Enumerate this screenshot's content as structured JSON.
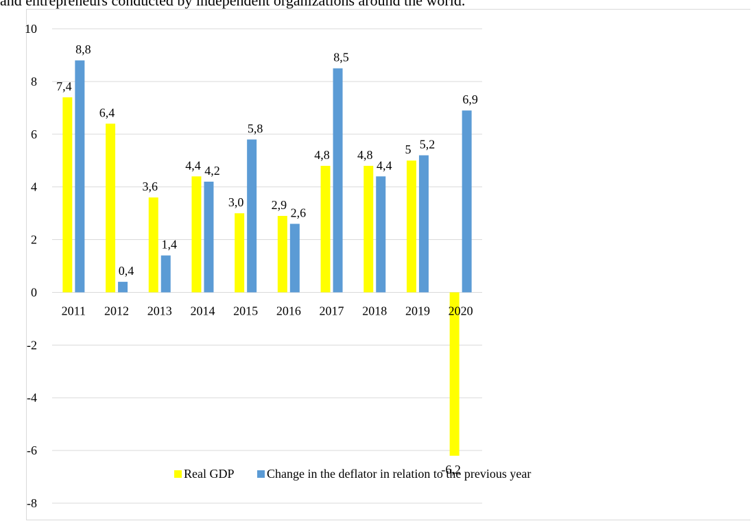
{
  "page": {
    "intro_text": "and entrepreneurs conducted by independent organizations around the world."
  },
  "chart_data": {
    "type": "bar",
    "title": "",
    "xlabel": "",
    "ylabel": "",
    "categories": [
      "2011",
      "2012",
      "2013",
      "2014",
      "2015",
      "2016",
      "2017",
      "2018",
      "2019",
      "2020"
    ],
    "series": [
      {
        "name": "Real GDP",
        "color": "#ffff00",
        "values": [
          7.4,
          6.4,
          3.6,
          4.4,
          3.0,
          2.9,
          4.8,
          4.8,
          5.0,
          -6.2
        ],
        "labels": [
          "7,4",
          "6,4",
          "3,6",
          "4,4",
          "3,0",
          "2,9",
          "4,8",
          "4,8",
          "5",
          "-6,2"
        ]
      },
      {
        "name": "Change in the deflator in relation to the previous year",
        "color": "#5b9bd5",
        "values": [
          8.8,
          0.4,
          1.4,
          4.2,
          5.8,
          2.6,
          8.5,
          4.4,
          5.2,
          6.9
        ],
        "labels": [
          "8,8",
          "0,4",
          "1,4",
          "4,2",
          "5,8",
          "2,6",
          "8,5",
          "4,4",
          "5,2",
          "6,9"
        ]
      }
    ],
    "ylim": [
      -8,
      10
    ],
    "yticks": [
      10,
      8,
      6,
      4,
      2,
      0,
      -2,
      -4,
      -6,
      -8
    ],
    "grid": true,
    "legend": "bottom"
  }
}
